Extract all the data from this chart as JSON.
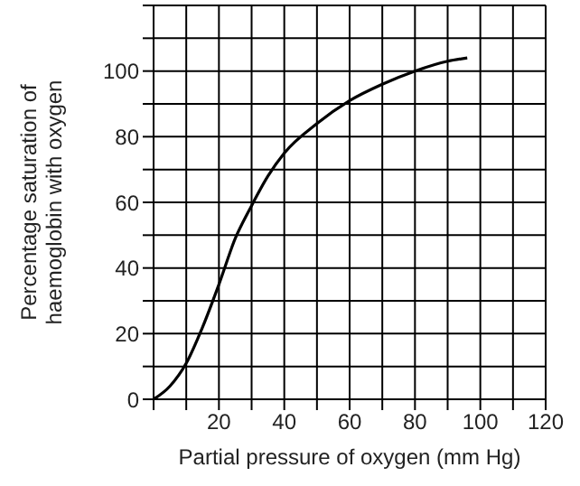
{
  "chart_data": {
    "type": "line",
    "xlabel": "Partial pressure of oxygen (mm Hg)",
    "ylabel": "Percentage saturation of haemoglobin with oxygen",
    "series": [
      {
        "color": "#000000",
        "x": [
          0,
          5,
          10,
          15,
          20,
          25,
          30,
          35,
          40,
          50,
          60,
          70,
          80,
          90,
          96
        ],
        "values": [
          0,
          4,
          11,
          22,
          35,
          49,
          59,
          68,
          75,
          84,
          91,
          96,
          100,
          103,
          104
        ]
      }
    ],
    "xlim": [
      0,
      120
    ],
    "ylim": [
      0,
      120
    ],
    "xticks": [
      {
        "value": 0,
        "label": null
      },
      {
        "value": 10,
        "label": null
      },
      20,
      {
        "value": 30,
        "label": null
      },
      40,
      {
        "value": 50,
        "label": null
      },
      60,
      {
        "value": 70,
        "label": null
      },
      80,
      {
        "value": 90,
        "label": null
      },
      100,
      {
        "value": 110,
        "label": null
      },
      120
    ],
    "yticks": [
      0,
      {
        "value": 10,
        "label": null
      },
      20,
      {
        "value": 30,
        "label": null
      },
      40,
      {
        "value": 50,
        "label": null
      },
      60,
      {
        "value": 70,
        "label": null
      },
      80,
      {
        "value": 90,
        "label": null
      },
      100,
      {
        "value": 110,
        "label": null
      },
      {
        "value": 120,
        "label": null
      }
    ],
    "grid": true,
    "marker": "none",
    "line_style": "solid"
  }
}
